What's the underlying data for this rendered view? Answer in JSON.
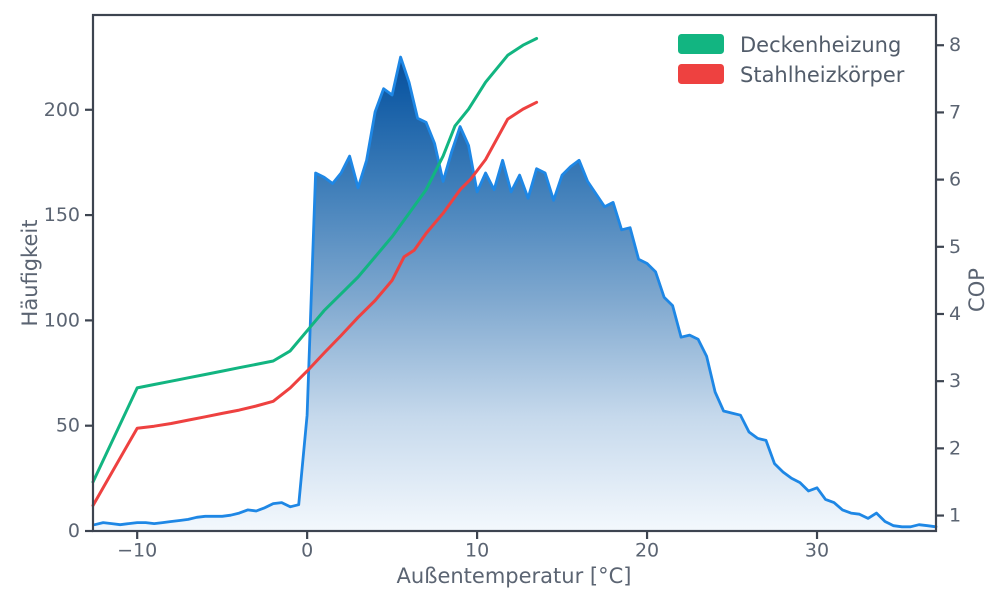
{
  "chart_data": {
    "type": "area",
    "title": "",
    "xlabel": "Außentemperatur [°C]",
    "ylabel_left": "Häufigkeit",
    "ylabel_right": "COP",
    "xlim": [
      -12.6,
      37.0
    ],
    "ylim_left": [
      0,
      245
    ],
    "ylim_right": [
      0.77,
      8.45
    ],
    "x_ticks": [
      -10,
      0,
      10,
      20,
      30
    ],
    "x_tick_labels": [
      "−10",
      "0",
      "10",
      "20",
      "30"
    ],
    "y_ticks_left": [
      0,
      50,
      100,
      150,
      200
    ],
    "y_tick_labels_left": [
      "0",
      "50",
      "100",
      "150",
      "200"
    ],
    "y_ticks_right": [
      1,
      2,
      3,
      4,
      5,
      6,
      7,
      8
    ],
    "y_tick_labels_right": [
      "1",
      "2",
      "3",
      "4",
      "5",
      "6",
      "7",
      "8"
    ],
    "grid": false,
    "legend_position": "upper right",
    "legend": [
      {
        "label": "Deckenheizung",
        "color": "#12b581"
      },
      {
        "label": "Stahlheizkörper",
        "color": "#ee4140"
      }
    ],
    "colors": {
      "histogram_line": "#1e87e5",
      "axis": "#3d4450",
      "tick_text": "#5b6472"
    },
    "fill_gradient_stops": [
      {
        "offset": 0.0,
        "color": "#083c83"
      },
      {
        "offset": 0.14,
        "color": "#105aa4"
      },
      {
        "offset": 0.32,
        "color": "#3c7cb8"
      },
      {
        "offset": 0.55,
        "color": "#7fa8cf"
      },
      {
        "offset": 0.78,
        "color": "#c6d9ec"
      },
      {
        "offset": 1.0,
        "color": "#f3f8fd"
      }
    ],
    "series": [
      {
        "name": "Häufigkeit",
        "type": "area-histogram",
        "axis": "left",
        "x_start": -12.5,
        "x_step": 0.5,
        "values": [
          3,
          4,
          3.5,
          3,
          3.5,
          4,
          4,
          3.5,
          4,
          4.5,
          5,
          5.5,
          6.5,
          7,
          7,
          7,
          7.5,
          8.5,
          10,
          9.5,
          11,
          13,
          13.5,
          11.5,
          12.5,
          55,
          170,
          168,
          165,
          170,
          178,
          163,
          176,
          199,
          210,
          207,
          225,
          213,
          196,
          194,
          184,
          166,
          180,
          192,
          183,
          161,
          170,
          162,
          176,
          161,
          169,
          158,
          172,
          170,
          157,
          169,
          173,
          176,
          166,
          160,
          154,
          156,
          143,
          144,
          129,
          127,
          123,
          111,
          107,
          92,
          93,
          91,
          83,
          66,
          57,
          56,
          55,
          47,
          44,
          43,
          32,
          28,
          25,
          23,
          19,
          20.5,
          15,
          13.5,
          10,
          8.5,
          8,
          6,
          8.5,
          4.5,
          2.5,
          2,
          2,
          3,
          2.5,
          2
        ]
      },
      {
        "name": "Deckenheizung",
        "type": "line",
        "axis": "right",
        "color": "#12b581",
        "x": [
          -12.6,
          -10,
          -9,
          -8,
          -7,
          -6,
          -5,
          -4,
          -3,
          -2,
          -1,
          0,
          1,
          2,
          3,
          4,
          5,
          6,
          7,
          8,
          8.7,
          9.5,
          10.5,
          11.8,
          12.7,
          13.5
        ],
        "y": [
          1.5,
          2.9,
          2.95,
          3.0,
          3.05,
          3.1,
          3.15,
          3.2,
          3.25,
          3.3,
          3.45,
          3.75,
          4.05,
          4.3,
          4.55,
          4.85,
          5.15,
          5.5,
          5.85,
          6.35,
          6.8,
          7.05,
          7.45,
          7.85,
          8.0,
          8.1
        ]
      },
      {
        "name": "Stahlheizkörper",
        "type": "line",
        "axis": "right",
        "color": "#ee4140",
        "x": [
          -12.6,
          -10,
          -9,
          -8,
          -7,
          -6,
          -5,
          -4,
          -3,
          -2,
          -1,
          0,
          1,
          2,
          3,
          4,
          5,
          5.7,
          6.3,
          7,
          8,
          9,
          9.6,
          10.5,
          11.8,
          12.7,
          13.5
        ],
        "y": [
          1.15,
          2.3,
          2.33,
          2.37,
          2.42,
          2.47,
          2.52,
          2.57,
          2.63,
          2.7,
          2.9,
          3.15,
          3.42,
          3.68,
          3.95,
          4.2,
          4.5,
          4.85,
          4.95,
          5.2,
          5.5,
          5.85,
          6.0,
          6.3,
          6.9,
          7.05,
          7.15
        ]
      }
    ]
  }
}
